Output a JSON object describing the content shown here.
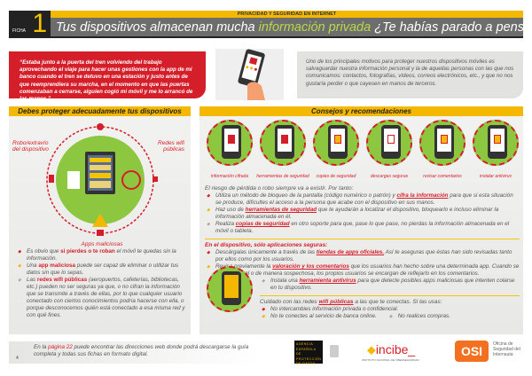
{
  "header": {
    "ficha_label": "FICHA",
    "ficha_number": "1",
    "series": "PRIVACIDAD Y SEGURIDAD EN INTERNET",
    "title_pre": "Tus dispositivos almacenan mucha ",
    "title_highlight": "información privada",
    "title_post": " ¿Te habías parado a pensarlo?"
  },
  "quote": "“Estaba junto a la puerta del tren volviendo del trabajo aprovechando el viaje para hacer unas gestiones con la app de mi banco cuando el tren se detuvo en una estación y justo antes de que reemprendiera su marcha, en el momento en que las puertas comenzaban a cerrarse, alguien cogió mi móvil y me lo arrancó de las manos.”",
  "intro": "Uno de los principales motivos para proteger nuestros dispositivos móviles es salvaguardar nuestra información personal y la de aquellas personas con las que nos comunicamos: contactos, fotografías, vídeos, correos electrónicos, etc., y que no nos gustaría perder o que cayesen en manos de terceros.",
  "left": {
    "title": "Debes proteger adecuadamente tus dispositivos",
    "diagram_labels": {
      "theft": "Robo/extravío del dispositivo",
      "wifi": "Redes wifi públicas",
      "apps": "Apps maliciosas",
      "app_badge": "APP"
    },
    "bullets": [
      {
        "pre": "Es obvio que ",
        "hl": "si pierdes o te roban",
        "post": " el móvil te quedas sin la información."
      },
      {
        "pre": "Una ",
        "hl": "app maliciosa",
        "post": " puede ser capaz de eliminar o utilizar tus datos sin que lo sepas."
      },
      {
        "pre": "Las ",
        "hl": "redes wifi públicas",
        "post": " (aeropuertos, cafeterías, bibliotecas, etc.) pueden no ser seguras ya que, o no cifran la información que se transmite a través de ellas, por lo que cualquier usuario conectado con ciertos conocimientos podría hacerse con ella, o porque desconocemos quién está conectado a esa misma red y con qué fines."
      }
    ]
  },
  "right": {
    "title": "Consejos y recomendaciones",
    "icons": [
      {
        "label": "información cifrada",
        "icon": "lock-icon"
      },
      {
        "label": "herramientas de seguridad",
        "icon": "safe-icon"
      },
      {
        "label": "copias de seguridad",
        "icon": "backup-folder-icon"
      },
      {
        "label": "descargas seguras",
        "icon": "app-store-icon"
      },
      {
        "label": "revisar comentarios",
        "icon": "comments-icon"
      },
      {
        "label": "instalar antivirus",
        "icon": "shield-icon"
      }
    ],
    "s1": {
      "head": "El riesgo de pérdida o robo siempre va a existir.",
      "head_post": " Por tanto:",
      "b1": {
        "pre": "Utiliza un método de bloqueo de la pantalla (código numérico o patrón) y ",
        "hl": "cifra la información",
        "post": " para que si esta situación se produce, dificultes el acceso a la persona que acabe con el dispositivo en sus manos."
      },
      "b2": {
        "pre": "Haz uso de ",
        "hl": "herramientas de seguridad",
        "post": " que te ayudarán a localizar el dispositivo, bloquearlo e incluso eliminar la información almacenada en él."
      },
      "b3": {
        "pre": "Realiza ",
        "hl": "copias de seguridad",
        "post": " en otro soporte para que, pase lo que pase, no pierdas la información almacenada en el móvil o tableta."
      }
    },
    "s2": {
      "head": "En el dispositivo, sólo aplicaciones seguras:",
      "b1": {
        "pre": "Descárgalas únicamente a través de las ",
        "hl": "tiendas de apps oficiales.",
        "post": " Así te aseguras que éstas han sido revisadas tanto por ellos como por los usuarios."
      },
      "b2": {
        "pre": "Revisa previamente la ",
        "hl": "valoración y los comentarios",
        "post": " que los usuarios han hecho sobre una determinada app. Cuando se comporta mal o de manera sospechosa, los propios usuarios se encargan de reflejarlo en los comentarios."
      },
      "b3": {
        "pre": "Instala una ",
        "hl": "herramienta antivirus",
        "post": " para que detecte posibles apps maliciosas que intenten colarse en tu dispositivo."
      }
    },
    "s3": {
      "head_pre": "Cuidado con las redes ",
      "head_hl": "wifi públicas",
      "head_post": " a las que te conectas.",
      "head_tail": " Si las usas:",
      "b1": "No intercambies información privada o confidencial.",
      "b2": "No te conectes al servicio de banca online.",
      "b3": "No realices compras."
    }
  },
  "footer": {
    "pre": "En la ",
    "link": "página 22",
    "post": " puede encontrar las direcciones web donde podrá descargarse la guía completa y todas sus fichas en formato digital.",
    "page": "4"
  },
  "logos": {
    "aepd": "AGENCIA ESPAÑOLA DE PROTECCIÓN DE DATOS",
    "incibe": "incibe_",
    "incibe_sub": "INSTITUTO NACIONAL DE CIBERSEGURIDAD",
    "osi": "OSI",
    "osi_sub": "Oficina de Seguridad del Internauta"
  },
  "colors": {
    "red": "#d41f2b",
    "yellow": "#f5b800",
    "green": "#8dc63f",
    "gray": "#6d6d6d"
  }
}
